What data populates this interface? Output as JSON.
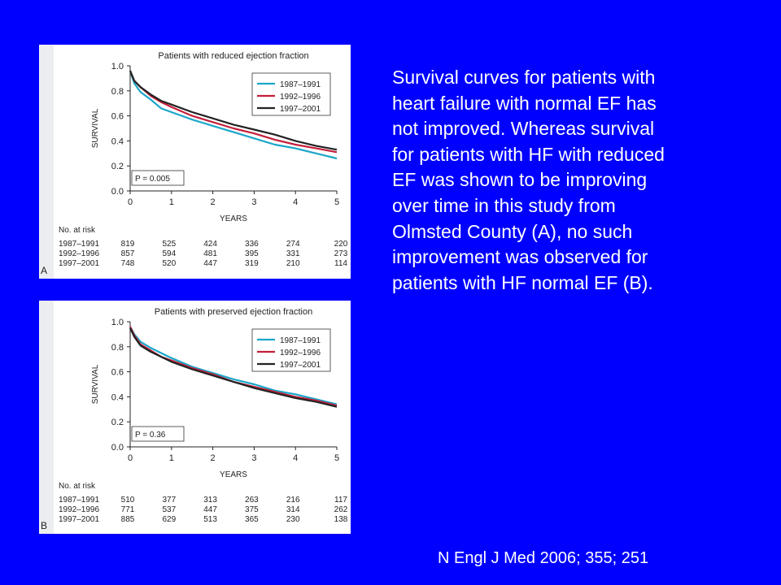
{
  "description_lines": [
    "Survival curves for patients with",
    "heart failure with normal EF has",
    "not improved.  Whereas survival",
    "for patients with HF with reduced",
    "EF was shown to be improving",
    "over time in this study from",
    "Olmsted County (A), no such",
    "improvement was observed for",
    "patients with HF normal EF (B)."
  ],
  "citation": "N Engl J Med 2006; 355; 251",
  "colors": {
    "background": "#0000FF",
    "text": "#FFFFFF",
    "1987–1991": "#1BA6C9",
    "1992–1996": "#C41E3A",
    "1997–2001": "#222222"
  },
  "chart_data": [
    {
      "type": "line",
      "panel_label": "A",
      "title": "Patients with reduced ejection fraction",
      "xlabel": "YEARS",
      "ylabel": "SURVIVAL",
      "xlim": [
        0,
        5
      ],
      "ylim": [
        0,
        1.0
      ],
      "x_ticks": [
        "0",
        "1",
        "2",
        "3",
        "4",
        "5"
      ],
      "y_ticks": [
        "0.0",
        "0.2",
        "0.4",
        "0.6",
        "0.8",
        "1.0"
      ],
      "legend_position": "top-right",
      "annotation": "P = 0.005",
      "x": [
        0,
        0.1,
        0.25,
        0.5,
        0.75,
        1,
        1.5,
        2,
        2.5,
        3,
        3.5,
        4,
        4.5,
        5
      ],
      "series": [
        {
          "name": "1987–1991",
          "values": [
            0.96,
            0.86,
            0.79,
            0.73,
            0.66,
            0.63,
            0.57,
            0.52,
            0.47,
            0.42,
            0.37,
            0.34,
            0.3,
            0.26
          ]
        },
        {
          "name": "1992–1996",
          "values": [
            0.96,
            0.88,
            0.83,
            0.76,
            0.71,
            0.67,
            0.6,
            0.55,
            0.5,
            0.46,
            0.41,
            0.37,
            0.34,
            0.31
          ]
        },
        {
          "name": "1997–2001",
          "values": [
            0.96,
            0.88,
            0.83,
            0.77,
            0.72,
            0.69,
            0.63,
            0.58,
            0.53,
            0.49,
            0.45,
            0.4,
            0.36,
            0.33
          ]
        }
      ],
      "at_risk": {
        "label": "No. at risk",
        "rows": [
          {
            "name": "1987–1991",
            "values": [
              "819",
              "525",
              "424",
              "336",
              "274",
              "220"
            ]
          },
          {
            "name": "1992–1996",
            "values": [
              "857",
              "594",
              "481",
              "395",
              "331",
              "273"
            ]
          },
          {
            "name": "1997–2001",
            "values": [
              "748",
              "520",
              "447",
              "319",
              "210",
              "114"
            ]
          }
        ]
      }
    },
    {
      "type": "line",
      "panel_label": "B",
      "title": "Patients with preserved ejection fraction",
      "xlabel": "YEARS",
      "ylabel": "SURVIVAL",
      "xlim": [
        0,
        5
      ],
      "ylim": [
        0,
        1.0
      ],
      "x_ticks": [
        "0",
        "1",
        "2",
        "3",
        "4",
        "5"
      ],
      "y_ticks": [
        "0.0",
        "0.2",
        "0.4",
        "0.6",
        "0.8",
        "1.0"
      ],
      "legend_position": "top-right",
      "annotation": "P = 0.36",
      "x": [
        0,
        0.1,
        0.25,
        0.5,
        0.75,
        1,
        1.5,
        2,
        2.5,
        3,
        3.5,
        4,
        4.5,
        5
      ],
      "series": [
        {
          "name": "1987–1991",
          "values": [
            0.96,
            0.9,
            0.84,
            0.79,
            0.75,
            0.71,
            0.64,
            0.59,
            0.54,
            0.5,
            0.45,
            0.42,
            0.38,
            0.34
          ]
        },
        {
          "name": "1992–1996",
          "values": [
            0.96,
            0.89,
            0.82,
            0.77,
            0.72,
            0.69,
            0.63,
            0.58,
            0.52,
            0.48,
            0.44,
            0.4,
            0.37,
            0.33
          ]
        },
        {
          "name": "1997–2001",
          "values": [
            0.95,
            0.88,
            0.81,
            0.76,
            0.72,
            0.68,
            0.62,
            0.57,
            0.52,
            0.47,
            0.43,
            0.39,
            0.36,
            0.32
          ]
        }
      ],
      "at_risk": {
        "label": "No. at risk",
        "rows": [
          {
            "name": "1987–1991",
            "values": [
              "510",
              "377",
              "313",
              "263",
              "216",
              "117"
            ]
          },
          {
            "name": "1992–1996",
            "values": [
              "771",
              "537",
              "447",
              "375",
              "314",
              "262"
            ]
          },
          {
            "name": "1997–2001",
            "values": [
              "885",
              "629",
              "513",
              "365",
              "230",
              "138"
            ]
          }
        ]
      }
    }
  ]
}
